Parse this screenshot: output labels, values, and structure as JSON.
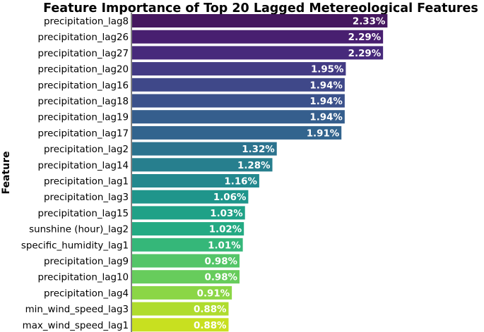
{
  "chart_data": {
    "type": "bar",
    "orientation": "horizontal",
    "title": "Feature Importance of Top 20 Lagged Metereological Features",
    "xlabel": "",
    "ylabel": "Feature",
    "categories": [
      "precipitation_lag8",
      "precipitation_lag26",
      "precipitation_lag27",
      "precipitation_lag20",
      "precipitation_lag16",
      "precipitation_lag18",
      "precipitation_lag19",
      "precipitation_lag17",
      "precipitation_lag2",
      "precipitation_lag14",
      "precipitation_lag1",
      "precipitation_lag3",
      "precipitation_lag15",
      "sunshine (hour)_lag2",
      "specific_humidity_lag1",
      "precipitation_lag9",
      "precipitation_lag10",
      "precipitation_lag4",
      "min_wind_speed_lag3",
      "max_wind_speed_lag1"
    ],
    "values": [
      2.33,
      2.29,
      2.29,
      1.95,
      1.94,
      1.94,
      1.94,
      1.91,
      1.32,
      1.28,
      1.16,
      1.06,
      1.03,
      1.02,
      1.01,
      0.98,
      0.98,
      0.91,
      0.88,
      0.88
    ],
    "value_labels": [
      "2.33%",
      "2.29%",
      "2.29%",
      "1.95%",
      "1.94%",
      "1.94%",
      "1.94%",
      "1.91%",
      "1.32%",
      "1.28%",
      "1.16%",
      "1.06%",
      "1.03%",
      "1.02%",
      "1.01%",
      "0.98%",
      "0.98%",
      "0.91%",
      "0.88%",
      "0.88%"
    ],
    "colors": [
      "#45175f",
      "#481f70",
      "#472a7b",
      "#433b84",
      "#3f4889",
      "#3b518b",
      "#355e8d",
      "#32648e",
      "#2c738e",
      "#277f8e",
      "#23888e",
      "#1f958b",
      "#1fa187",
      "#24aa83",
      "#35b779",
      "#54c568",
      "#67cc5c",
      "#8bd646",
      "#afdc2e",
      "#c8e020"
    ],
    "xlim": [
      0,
      2.36
    ],
    "grid": false,
    "legend": "none"
  }
}
